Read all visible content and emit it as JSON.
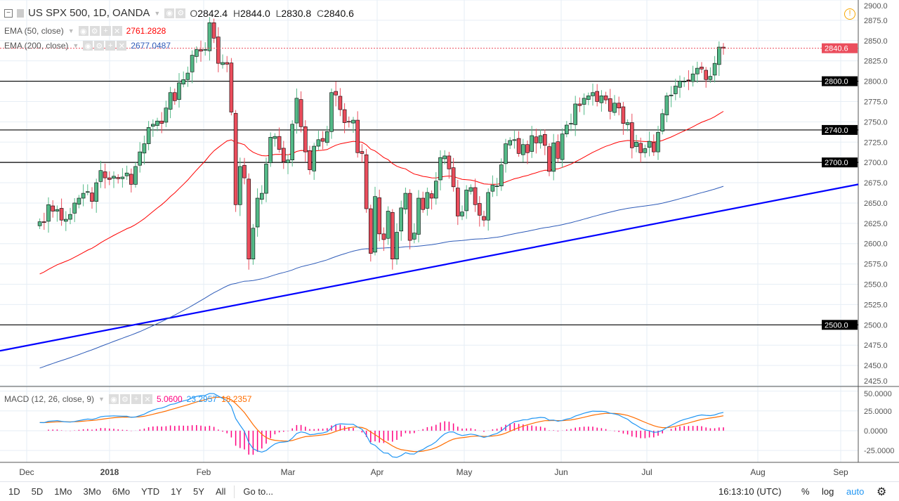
{
  "header": {
    "symbol": "US SPX 500, 1D, OANDA",
    "o_label": "O",
    "o": "2842.4",
    "h_label": "H",
    "h": "2844.0",
    "l_label": "L",
    "l": "2830.8",
    "c_label": "C",
    "c": "2840.6"
  },
  "indicators": {
    "ema50": {
      "label": "EMA (50, close)",
      "value": "2761.2828",
      "color": "#ff0000"
    },
    "ema200": {
      "label": "EMA (200, close)",
      "value": "2677.0487",
      "color": "#2e5bb8"
    },
    "macd": {
      "label": "MACD (12, 26, close, 9)",
      "hist": "5.0600",
      "macd": "23.2957",
      "signal": "18.2357",
      "hist_color": "#ff0080",
      "macd_color": "#2196f3",
      "signal_color": "#ff6d00"
    }
  },
  "toolbar": {
    "ranges": [
      "1D",
      "5D",
      "1Mo",
      "3Mo",
      "6Mo",
      "YTD",
      "1Y",
      "5Y",
      "All"
    ],
    "goto": "Go to...",
    "time": "16:13:10 (UTC)",
    "percent": "%",
    "log": "log",
    "auto": "auto"
  },
  "chart_data": {
    "type": "candlestick",
    "last_date": "2018-07-26",
    "closes": [
      2627,
      2626,
      2648,
      2640,
      2642,
      2629,
      2630,
      2636,
      2650,
      2656,
      2662,
      2664,
      2652,
      2675,
      2690,
      2681,
      2679,
      2683,
      2680,
      2682,
      2687,
      2673,
      2695,
      2713,
      2723,
      2743,
      2747,
      2751,
      2748,
      2767,
      2786,
      2776,
      2798,
      2802,
      2810,
      2832,
      2839,
      2837,
      2839,
      2872,
      2853,
      2822,
      2823,
      2821,
      2762,
      2648,
      2695,
      2681,
      2581,
      2619,
      2656,
      2662,
      2698,
      2731,
      2732,
      2716,
      2701,
      2703,
      2747,
      2779,
      2744,
      2713,
      2691,
      2720,
      2728,
      2726,
      2738,
      2786,
      2783,
      2765,
      2749,
      2750,
      2752,
      2712,
      2711,
      2643,
      2588,
      2658,
      2612,
      2605,
      2640,
      2581,
      2614,
      2644,
      2662,
      2604,
      2613,
      2656,
      2642,
      2663,
      2656,
      2677,
      2706,
      2708,
      2692,
      2670,
      2634,
      2639,
      2666,
      2669,
      2648,
      2635,
      2629,
      2663,
      2672,
      2671,
      2697,
      2723,
      2727,
      2728,
      2711,
      2722,
      2712,
      2733,
      2724,
      2733,
      2721,
      2689,
      2724,
      2705,
      2735,
      2746,
      2748,
      2772,
      2770,
      2779,
      2782,
      2786,
      2775,
      2782,
      2777,
      2763,
      2773,
      2767,
      2748,
      2749,
      2718,
      2725,
      2712,
      2717,
      2726,
      2713,
      2737,
      2760,
      2782,
      2783,
      2794,
      2800,
      2800,
      2801,
      2809,
      2816,
      2815,
      2802,
      2806,
      2822,
      2842,
      2840.6
    ],
    "last_price": "2840.6",
    "price_ticks": [
      "2900.0",
      "2875.0",
      "2850.0",
      "2825.0",
      "2800.0",
      "2775.0",
      "2750.0",
      "2725.0",
      "2700.0",
      "2675.0",
      "2650.0",
      "2625.0",
      "2600.0",
      "2575.0",
      "2550.0",
      "2525.0",
      "2500.0",
      "2475.0",
      "2450.0",
      "2425.0"
    ],
    "price_range": [
      2425,
      2900
    ],
    "levels": [
      {
        "price": 2800,
        "label": "2800.0"
      },
      {
        "price": 2740,
        "label": "2740.0"
      },
      {
        "price": 2700,
        "label": "2700.0"
      },
      {
        "price": 2500,
        "label": "2500.0"
      }
    ],
    "trendline": {
      "start_price": 2468,
      "end_price": 2673,
      "color": "#0000ff"
    },
    "macd_ticks": [
      "50.0000",
      "25.0000",
      "0.0000",
      "-25.0000"
    ],
    "macd_range": [
      -40,
      55
    ],
    "x_ticks": [
      "Dec",
      "2018",
      "Feb",
      "Mar",
      "Apr",
      "May",
      "Jun",
      "Jul",
      "Aug",
      "Sep"
    ],
    "up_color": "#53b987",
    "down_color": "#eb4d5c",
    "grid": true
  }
}
